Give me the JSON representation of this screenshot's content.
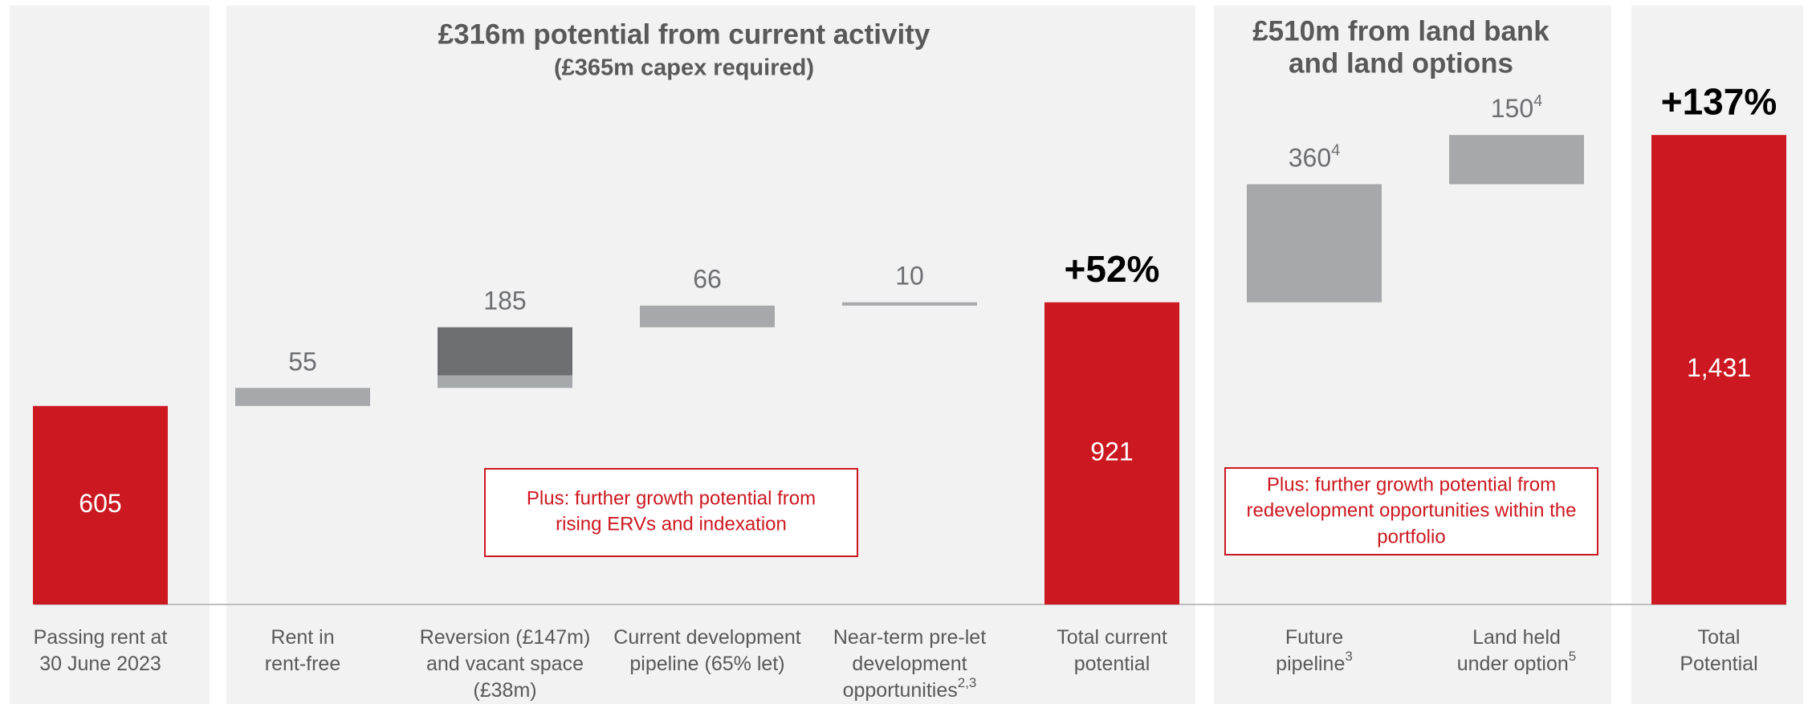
{
  "chart_data": {
    "type": "waterfall",
    "categories": [
      [
        "Passing rent at",
        "30 June 2023"
      ],
      [
        "Rent in",
        "rent-free"
      ],
      [
        "Reversion (£147m)",
        "and vacant space",
        "(£38m)"
      ],
      [
        "Current development",
        "pipeline (65% let)"
      ],
      [
        "Near-term pre-let",
        "development",
        "opportunities"
      ],
      [
        "Total current",
        "potential"
      ],
      [
        "Future",
        "pipeline"
      ],
      [
        "Land held",
        "under option"
      ],
      [
        "Total",
        "Potential"
      ]
    ],
    "category_notes": [
      null,
      null,
      null,
      null,
      "2,3",
      null,
      "3",
      "5",
      null
    ],
    "values": [
      605,
      55,
      185,
      66,
      10,
      921,
      360,
      150,
      1431
    ],
    "value_labels": [
      "605",
      "55",
      "185",
      "66",
      "10",
      "921",
      "360",
      "150",
      "1,431"
    ],
    "value_notes": [
      null,
      null,
      null,
      null,
      null,
      null,
      "4",
      "4",
      null
    ],
    "kinds": [
      "total",
      "delta",
      "delta",
      "delta",
      "delta",
      "total",
      "delta",
      "delta",
      "total"
    ],
    "colors": {
      "total": "#cc1820",
      "delta": "#a7a8ab"
    },
    "segments": [
      null,
      null,
      [
        {
          "value": 38,
          "color": "#a7a8ab"
        },
        {
          "value": 147,
          "color": "#6d6e71"
        }
      ],
      null,
      null,
      null,
      null,
      null,
      null
    ],
    "ylim": [
      0,
      1500
    ],
    "annotations": [
      {
        "index": 5,
        "text": "+52%"
      },
      {
        "index": 8,
        "text": "+137%"
      }
    ],
    "sections": [
      {
        "title": "£316m potential from current activity",
        "subtitle": "(£365m capex required)"
      },
      {
        "title_lines": [
          "£510m from land bank",
          "and land options"
        ]
      }
    ],
    "notes": [
      [
        "Plus: further growth potential from",
        "rising ERVs and indexation"
      ],
      [
        "Plus: further growth potential from",
        "redevelopment opportunities within the",
        "portfolio"
      ]
    ]
  }
}
